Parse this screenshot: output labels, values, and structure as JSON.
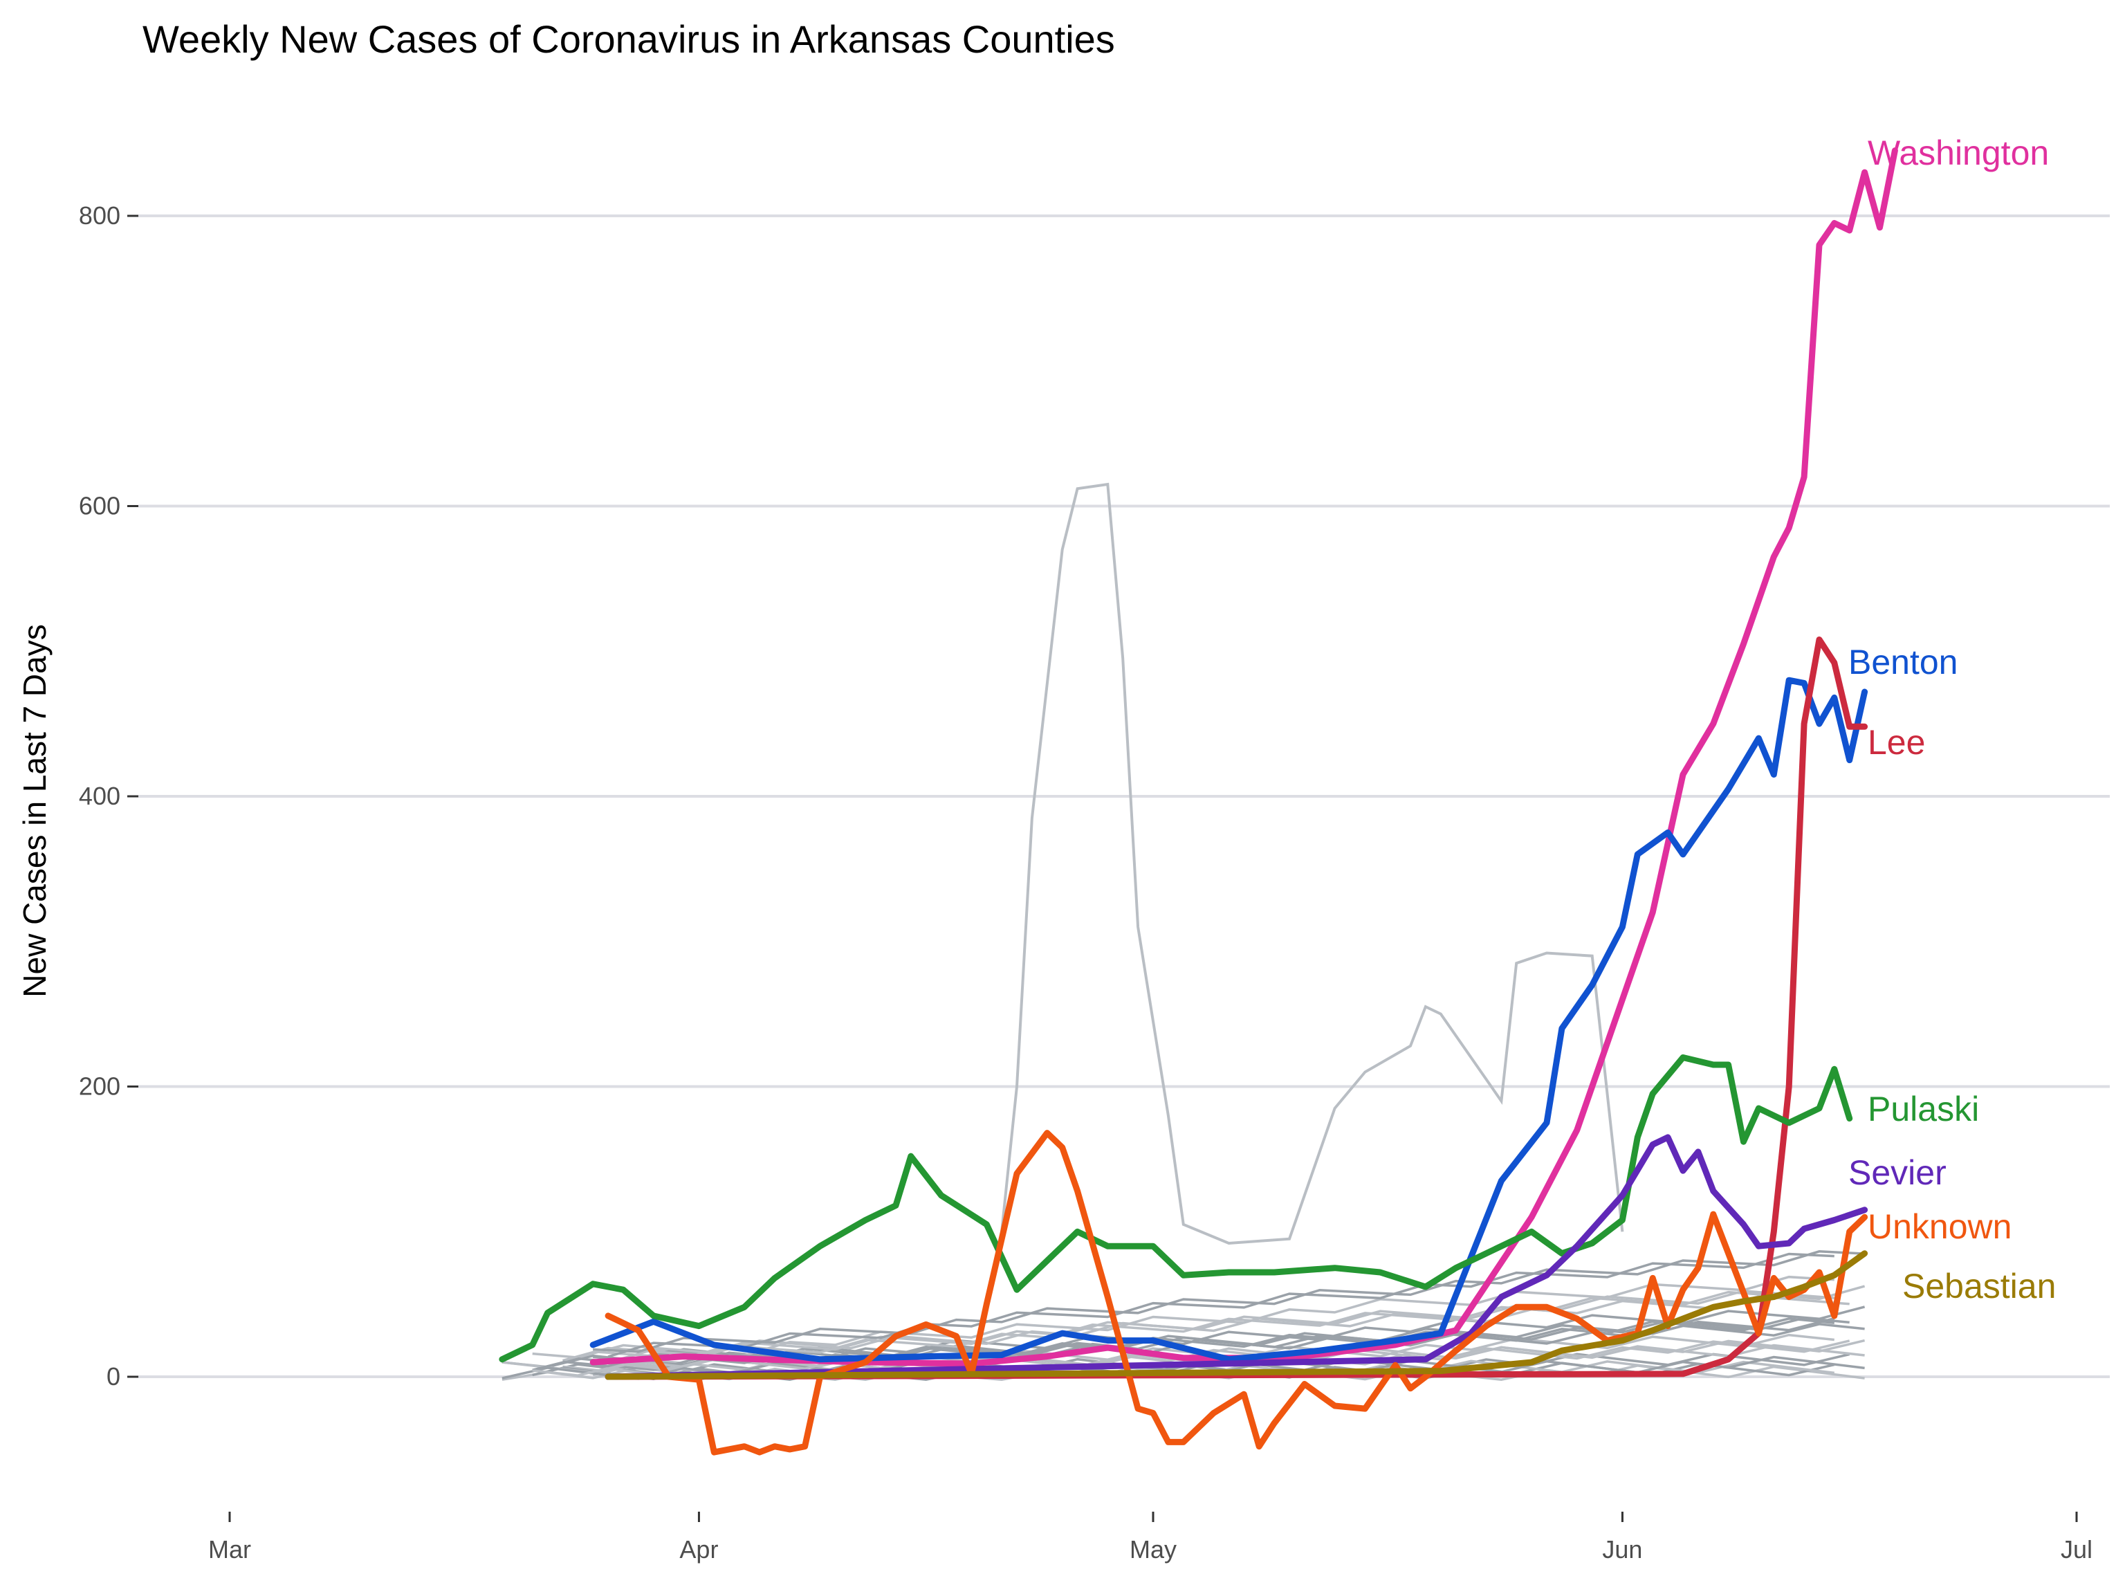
{
  "chart_data": {
    "type": "line",
    "title": "Weekly New Cases of Coronavirus in Arkansas Counties",
    "xlabel": "",
    "ylabel": "New Cases in Last 7 Days",
    "x_ticks": [
      "Mar",
      "Apr",
      "May",
      "Jun",
      "Jul"
    ],
    "y_ticks": [
      "0",
      "200",
      "400",
      "600",
      "800"
    ],
    "xlim": [
      "2020-03-01",
      "2020-07-01"
    ],
    "ylim": [
      -95,
      855
    ],
    "grid": true,
    "legend": "direct labels at line ends",
    "series": [
      {
        "name": "Washington",
        "color": "#e0309e",
        "values": [
          [
            "2020-03-25",
            10
          ],
          [
            "2020-03-31",
            14
          ],
          [
            "2020-04-05",
            12
          ],
          [
            "2020-04-12",
            10
          ],
          [
            "2020-04-19",
            9
          ],
          [
            "2020-04-24",
            14
          ],
          [
            "2020-04-28",
            20
          ],
          [
            "2020-05-03",
            13
          ],
          [
            "2020-05-10",
            13
          ],
          [
            "2020-05-17",
            22
          ],
          [
            "2020-05-21",
            32
          ],
          [
            "2020-05-26",
            110
          ],
          [
            "2020-05-29",
            170
          ],
          [
            "2020-06-01",
            260
          ],
          [
            "2020-06-03",
            320
          ],
          [
            "2020-06-05",
            415
          ],
          [
            "2020-06-07",
            450
          ],
          [
            "2020-06-09",
            505
          ],
          [
            "2020-06-11",
            565
          ],
          [
            "2020-06-12",
            585
          ],
          [
            "2020-06-13",
            620
          ],
          [
            "2020-06-14",
            780
          ],
          [
            "2020-06-15",
            795
          ],
          [
            "2020-06-16",
            790
          ],
          [
            "2020-06-17",
            830
          ],
          [
            "2020-06-18",
            792
          ],
          [
            "2020-06-19",
            845
          ]
        ]
      },
      {
        "name": "Benton",
        "color": "#1052d0",
        "values": [
          [
            "2020-03-25",
            22
          ],
          [
            "2020-03-29",
            38
          ],
          [
            "2020-04-02",
            22
          ],
          [
            "2020-04-09",
            12
          ],
          [
            "2020-04-16",
            14
          ],
          [
            "2020-04-21",
            15
          ],
          [
            "2020-04-25",
            30
          ],
          [
            "2020-04-28",
            25
          ],
          [
            "2020-05-01",
            25
          ],
          [
            "2020-05-06",
            12
          ],
          [
            "2020-05-12",
            18
          ],
          [
            "2020-05-17",
            25
          ],
          [
            "2020-05-20",
            30
          ],
          [
            "2020-05-24",
            135
          ],
          [
            "2020-05-27",
            175
          ],
          [
            "2020-05-28",
            240
          ],
          [
            "2020-05-30",
            270
          ],
          [
            "2020-06-01",
            310
          ],
          [
            "2020-06-02",
            360
          ],
          [
            "2020-06-04",
            375
          ],
          [
            "2020-06-05",
            360
          ],
          [
            "2020-06-06",
            375
          ],
          [
            "2020-06-08",
            405
          ],
          [
            "2020-06-10",
            440
          ],
          [
            "2020-06-11",
            415
          ],
          [
            "2020-06-12",
            480
          ],
          [
            "2020-06-13",
            478
          ],
          [
            "2020-06-14",
            450
          ],
          [
            "2020-06-15",
            468
          ],
          [
            "2020-06-16",
            425
          ],
          [
            "2020-06-17",
            472
          ]
        ]
      },
      {
        "name": "Lee",
        "color": "#cc2a3e",
        "values": [
          [
            "2020-03-26",
            0
          ],
          [
            "2020-06-05",
            2
          ],
          [
            "2020-06-08",
            12
          ],
          [
            "2020-06-10",
            30
          ],
          [
            "2020-06-11",
            100
          ],
          [
            "2020-06-12",
            200
          ],
          [
            "2020-06-13",
            450
          ],
          [
            "2020-06-14",
            508
          ],
          [
            "2020-06-15",
            492
          ],
          [
            "2020-06-16",
            448
          ],
          [
            "2020-06-17",
            448
          ]
        ]
      },
      {
        "name": "Pulaski",
        "color": "#249632",
        "values": [
          [
            "2020-03-19",
            12
          ],
          [
            "2020-03-21",
            22
          ],
          [
            "2020-03-22",
            44
          ],
          [
            "2020-03-25",
            64
          ],
          [
            "2020-03-27",
            60
          ],
          [
            "2020-03-29",
            42
          ],
          [
            "2020-04-01",
            35
          ],
          [
            "2020-04-04",
            48
          ],
          [
            "2020-04-06",
            68
          ],
          [
            "2020-04-09",
            90
          ],
          [
            "2020-04-12",
            108
          ],
          [
            "2020-04-14",
            118
          ],
          [
            "2020-04-15",
            152
          ],
          [
            "2020-04-17",
            125
          ],
          [
            "2020-04-20",
            105
          ],
          [
            "2020-04-22",
            60
          ],
          [
            "2020-04-24",
            80
          ],
          [
            "2020-04-26",
            100
          ],
          [
            "2020-04-28",
            90
          ],
          [
            "2020-05-01",
            90
          ],
          [
            "2020-05-03",
            70
          ],
          [
            "2020-05-06",
            72
          ],
          [
            "2020-05-09",
            72
          ],
          [
            "2020-05-13",
            75
          ],
          [
            "2020-05-16",
            72
          ],
          [
            "2020-05-19",
            62
          ],
          [
            "2020-05-21",
            75
          ],
          [
            "2020-05-24",
            90
          ],
          [
            "2020-05-26",
            100
          ],
          [
            "2020-05-28",
            85
          ],
          [
            "2020-05-30",
            92
          ],
          [
            "2020-06-01",
            108
          ],
          [
            "2020-06-02",
            165
          ],
          [
            "2020-06-03",
            195
          ],
          [
            "2020-06-05",
            220
          ],
          [
            "2020-06-07",
            215
          ],
          [
            "2020-06-08",
            215
          ],
          [
            "2020-06-09",
            162
          ],
          [
            "2020-06-10",
            185
          ],
          [
            "2020-06-12",
            175
          ],
          [
            "2020-06-14",
            185
          ],
          [
            "2020-06-15",
            212
          ],
          [
            "2020-06-16",
            178
          ]
        ]
      },
      {
        "name": "Sevier",
        "color": "#6028b8",
        "values": [
          [
            "2020-03-26",
            0
          ],
          [
            "2020-05-19",
            12
          ],
          [
            "2020-05-22",
            30
          ],
          [
            "2020-05-24",
            55
          ],
          [
            "2020-05-27",
            70
          ],
          [
            "2020-05-29",
            90
          ],
          [
            "2020-06-01",
            125
          ],
          [
            "2020-06-03",
            160
          ],
          [
            "2020-06-04",
            165
          ],
          [
            "2020-06-05",
            142
          ],
          [
            "2020-06-06",
            155
          ],
          [
            "2020-06-07",
            128
          ],
          [
            "2020-06-09",
            105
          ],
          [
            "2020-06-10",
            90
          ],
          [
            "2020-06-12",
            92
          ],
          [
            "2020-06-13",
            102
          ],
          [
            "2020-06-15",
            108
          ],
          [
            "2020-06-17",
            115
          ]
        ]
      },
      {
        "name": "Unknown",
        "color": "#f0560f",
        "values": [
          [
            "2020-03-26",
            42
          ],
          [
            "2020-03-28",
            32
          ],
          [
            "2020-03-30",
            0
          ],
          [
            "2020-04-01",
            -2
          ],
          [
            "2020-04-02",
            -52
          ],
          [
            "2020-04-04",
            -48
          ],
          [
            "2020-04-05",
            -52
          ],
          [
            "2020-04-06",
            -48
          ],
          [
            "2020-04-07",
            -50
          ],
          [
            "2020-04-08",
            -48
          ],
          [
            "2020-04-09",
            0
          ],
          [
            "2020-04-12",
            10
          ],
          [
            "2020-04-14",
            28
          ],
          [
            "2020-04-16",
            36
          ],
          [
            "2020-04-18",
            28
          ],
          [
            "2020-04-19",
            2
          ],
          [
            "2020-04-20",
            50
          ],
          [
            "2020-04-22",
            140
          ],
          [
            "2020-04-24",
            168
          ],
          [
            "2020-04-25",
            158
          ],
          [
            "2020-04-26",
            128
          ],
          [
            "2020-04-28",
            55
          ],
          [
            "2020-04-30",
            -22
          ],
          [
            "2020-05-01",
            -25
          ],
          [
            "2020-05-02",
            -45
          ],
          [
            "2020-05-03",
            -45
          ],
          [
            "2020-05-05",
            -25
          ],
          [
            "2020-05-07",
            -12
          ],
          [
            "2020-05-08",
            -48
          ],
          [
            "2020-05-09",
            -32
          ],
          [
            "2020-05-11",
            -5
          ],
          [
            "2020-05-13",
            -20
          ],
          [
            "2020-05-15",
            -22
          ],
          [
            "2020-05-17",
            8
          ],
          [
            "2020-05-18",
            -8
          ],
          [
            "2020-05-19",
            0
          ],
          [
            "2020-05-21",
            18
          ],
          [
            "2020-05-23",
            35
          ],
          [
            "2020-05-25",
            48
          ],
          [
            "2020-05-27",
            48
          ],
          [
            "2020-05-29",
            40
          ],
          [
            "2020-05-31",
            25
          ],
          [
            "2020-06-02",
            30
          ],
          [
            "2020-06-03",
            68
          ],
          [
            "2020-06-04",
            35
          ],
          [
            "2020-06-05",
            60
          ],
          [
            "2020-06-06",
            75
          ],
          [
            "2020-06-07",
            112
          ],
          [
            "2020-06-09",
            58
          ],
          [
            "2020-06-10",
            30
          ],
          [
            "2020-06-11",
            68
          ],
          [
            "2020-06-12",
            55
          ],
          [
            "2020-06-13",
            60
          ],
          [
            "2020-06-14",
            72
          ],
          [
            "2020-06-15",
            42
          ],
          [
            "2020-06-16",
            100
          ],
          [
            "2020-06-17",
            110
          ]
        ]
      },
      {
        "name": "Sebastian",
        "color": "#9a7b06",
        "values": [
          [
            "2020-03-26",
            0
          ],
          [
            "2020-05-20",
            4
          ],
          [
            "2020-05-26",
            10
          ],
          [
            "2020-05-28",
            18
          ],
          [
            "2020-06-01",
            25
          ],
          [
            "2020-06-03",
            32
          ],
          [
            "2020-06-05",
            40
          ],
          [
            "2020-06-07",
            48
          ],
          [
            "2020-06-09",
            52
          ],
          [
            "2020-06-11",
            55
          ],
          [
            "2020-06-13",
            62
          ],
          [
            "2020-06-15",
            70
          ],
          [
            "2020-06-17",
            85
          ]
        ]
      }
    ],
    "other_counties": {
      "color": "#b9bec4",
      "count_shown": 20,
      "note_values": [
        [
          "2020-04-21",
          100
        ],
        [
          "2020-04-22",
          200
        ],
        [
          "2020-04-23",
          385
        ],
        [
          "2020-04-25",
          570
        ],
        [
          "2020-04-26",
          612
        ],
        [
          "2020-04-28",
          615
        ],
        [
          "2020-04-29",
          495
        ],
        [
          "2020-04-30",
          310
        ],
        [
          "2020-05-02",
          180
        ],
        [
          "2020-05-03",
          105
        ],
        [
          "2020-05-06",
          92
        ],
        [
          "2020-05-10",
          95
        ],
        [
          "2020-05-13",
          185
        ],
        [
          "2020-05-15",
          210
        ],
        [
          "2020-05-18",
          228
        ],
        [
          "2020-05-19",
          255
        ],
        [
          "2020-05-20",
          250
        ],
        [
          "2020-05-22",
          220
        ],
        [
          "2020-05-24",
          190
        ],
        [
          "2020-05-25",
          285
        ],
        [
          "2020-05-27",
          292
        ],
        [
          "2020-05-30",
          290
        ],
        [
          "2020-06-01",
          100
        ]
      ]
    }
  }
}
